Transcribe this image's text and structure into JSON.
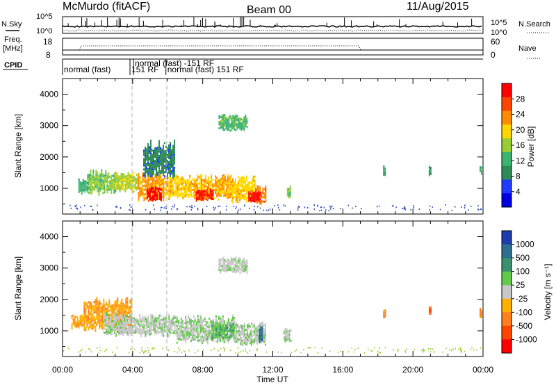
{
  "header": {
    "station": "McMurdo (fitACF)",
    "beam": "Beam 00",
    "date": "11/Aug/2015"
  },
  "param_panels": {
    "nsky_label": "N.Sky",
    "nsearch_label": "N.Search",
    "freq_label_line1": "Freq.",
    "freq_label_line2": "[MHz]",
    "nave_label": "Nave",
    "cpid_label": "CPID",
    "noise_left_top": "10^5",
    "noise_left_bottom": "10^0",
    "noise_right_top": "10^5",
    "noise_right_bottom": "10^0",
    "freq_ticks": [
      "18",
      "8"
    ],
    "nave_ticks": [
      "60",
      "0"
    ],
    "cpid_segments": [
      {
        "label": "normal (fast)",
        "start_h": 0.0,
        "row": 1
      },
      {
        "label": "151 RF",
        "start_h": 3.85,
        "row": 1
      },
      {
        "label": "normal (fast) -151 RF",
        "start_h": 4.05,
        "row": 0
      },
      {
        "label": "normal (fast) 151 RF",
        "start_h": 5.9,
        "row": 1
      }
    ]
  },
  "colorbars": {
    "power": {
      "label": "Power [dB]",
      "ticks": [
        "28",
        "24",
        "20",
        "16",
        "12",
        "8",
        "4"
      ],
      "colors": [
        "#ff0000",
        "#ff4500",
        "#ff8c00",
        "#ffd700",
        "#9acd32",
        "#3cb371",
        "#2e8b57",
        "#1e3cff",
        "#0000e0"
      ]
    },
    "velocity": {
      "label": "Velocity [m s⁻¹]",
      "ticks": [
        "1000",
        "500",
        "100",
        "25",
        "-25",
        "-100",
        "-500",
        "-1000"
      ],
      "colors": [
        "#1e3caa",
        "#2e6e8e",
        "#3a8f6e",
        "#62c94a",
        "#c8c8c8",
        "#ffb000",
        "#ff7f1e",
        "#ff4500",
        "#ff0000"
      ]
    }
  },
  "chart_data": [
    {
      "type": "heatmap",
      "name": "power",
      "ylabel": "Slant Range [km]",
      "xlabel": "Time UT",
      "xlim_hours": [
        0,
        24
      ],
      "ylim": [
        180,
        4500
      ],
      "y_ticks": [
        1000,
        2000,
        3000,
        4000
      ],
      "x_ticks": [
        "00:00",
        "04:00",
        "08:00",
        "12:00",
        "16:00",
        "20:00",
        "00:00"
      ],
      "colorbar_range": [
        0,
        30
      ],
      "regions": [
        {
          "t0": 0.9,
          "t1": 1.5,
          "r0": 900,
          "r1": 1250,
          "v": 11
        },
        {
          "t0": 1.4,
          "t1": 3.0,
          "r0": 900,
          "r1": 1500,
          "v": 14
        },
        {
          "t0": 3.0,
          "t1": 4.3,
          "r0": 950,
          "r1": 1450,
          "v": 16
        },
        {
          "t0": 4.3,
          "t1": 5.8,
          "r0": 700,
          "r1": 1400,
          "v": 21
        },
        {
          "t0": 5.8,
          "t1": 7.5,
          "r0": 750,
          "r1": 1350,
          "v": 19
        },
        {
          "t0": 7.5,
          "t1": 9.6,
          "r0": 700,
          "r1": 1350,
          "v": 20
        },
        {
          "t0": 9.6,
          "t1": 11.0,
          "r0": 650,
          "r1": 1300,
          "v": 19
        },
        {
          "t0": 11.0,
          "t1": 11.6,
          "r0": 550,
          "r1": 1050,
          "v": 22
        },
        {
          "t0": 4.8,
          "t1": 5.6,
          "r0": 650,
          "r1": 1000,
          "v": 28
        },
        {
          "t0": 7.6,
          "t1": 8.6,
          "r0": 650,
          "r1": 950,
          "v": 27
        },
        {
          "t0": 10.6,
          "t1": 11.3,
          "r0": 600,
          "r1": 900,
          "v": 29
        },
        {
          "t0": 8.9,
          "t1": 10.5,
          "r0": 2900,
          "r1": 3300,
          "v": 12
        },
        {
          "t0": 4.6,
          "t1": 6.4,
          "r0": 1400,
          "r1": 2400,
          "v": 8
        },
        {
          "t0": 12.8,
          "t1": 13.0,
          "r0": 750,
          "r1": 1050,
          "v": 14
        },
        {
          "t0": 18.3,
          "t1": 18.45,
          "r0": 1450,
          "r1": 1700,
          "v": 9
        },
        {
          "t0": 20.9,
          "t1": 21.05,
          "r0": 1450,
          "r1": 1700,
          "v": 10
        },
        {
          "t0": 23.8,
          "t1": 23.95,
          "r0": 1450,
          "r1": 1700,
          "v": 12
        }
      ]
    },
    {
      "type": "heatmap",
      "name": "velocity",
      "ylabel": "Slant Range [km]",
      "xlabel": "Time UT",
      "xlim_hours": [
        0,
        24
      ],
      "ylim": [
        180,
        4500
      ],
      "y_ticks": [
        1000,
        2000,
        3000,
        4000
      ],
      "x_ticks": [
        "00:00",
        "04:00",
        "08:00",
        "12:00",
        "16:00",
        "20:00",
        "00:00"
      ],
      "colorbar_range": [
        -1000,
        1000
      ],
      "regions": [
        {
          "t0": 0.5,
          "t1": 1.2,
          "r0": 1100,
          "r1": 1500,
          "v": -300
        },
        {
          "t0": 1.2,
          "t1": 3.9,
          "r0": 1100,
          "r1": 1950,
          "v": -300
        },
        {
          "t0": 2.3,
          "t1": 3.9,
          "r0": 900,
          "r1": 1500,
          "v": 60
        },
        {
          "t0": 3.9,
          "t1": 6.5,
          "r0": 900,
          "r1": 1450,
          "v": 60
        },
        {
          "t0": 6.5,
          "t1": 9.8,
          "r0": 700,
          "r1": 1400,
          "v": 80
        },
        {
          "t0": 8.5,
          "t1": 9.8,
          "r0": 800,
          "r1": 1200,
          "v": 300
        },
        {
          "t0": 9.8,
          "t1": 11.6,
          "r0": 600,
          "r1": 1200,
          "v": 80
        },
        {
          "t0": 11.2,
          "t1": 11.4,
          "r0": 650,
          "r1": 1150,
          "v": 700
        },
        {
          "t0": 8.9,
          "t1": 10.5,
          "r0": 2900,
          "r1": 3300,
          "v": 40
        },
        {
          "t0": 12.6,
          "t1": 13.0,
          "r0": 700,
          "r1": 1050,
          "v": 80
        },
        {
          "t0": 18.3,
          "t1": 18.45,
          "r0": 1450,
          "r1": 1700,
          "v": -400
        },
        {
          "t0": 20.9,
          "t1": 21.05,
          "r0": 1500,
          "r1": 1750,
          "v": -600
        },
        {
          "t0": 23.8,
          "t1": 23.95,
          "r0": 1450,
          "r1": 1700,
          "v": -400
        }
      ]
    }
  ]
}
